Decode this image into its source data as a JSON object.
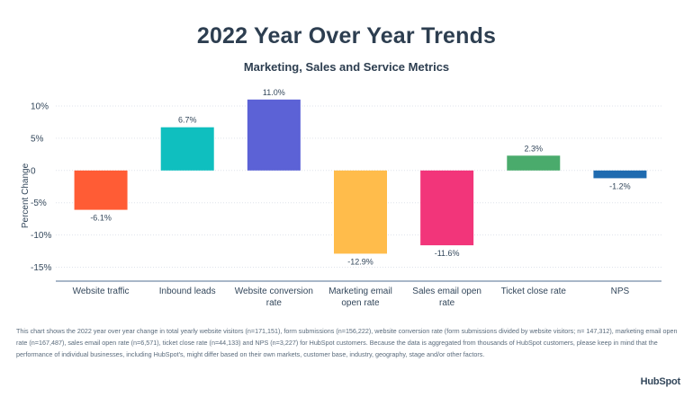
{
  "header": {
    "title": "2022 Year Over Year Trends",
    "subtitle": "Marketing, Sales and Service Metrics"
  },
  "chart_data": {
    "type": "bar",
    "title": "2022 Year Over Year Trends",
    "subtitle": "Marketing, Sales and Service Metrics",
    "xlabel": "",
    "ylabel": "Percent Change",
    "ylim": [
      -16.5,
      11
    ],
    "yticks": [
      10,
      5,
      0,
      -5,
      -10,
      -15
    ],
    "ytick_labels": [
      "10%",
      "5%",
      "0",
      "-5%",
      "-10%",
      "-15%"
    ],
    "grid": true,
    "legend": "none",
    "categories": [
      [
        "Website traffic"
      ],
      [
        "Inbound leads"
      ],
      [
        "Website conversion",
        "rate"
      ],
      [
        "Marketing email",
        "open rate"
      ],
      [
        "Sales email open",
        "rate"
      ],
      [
        "Ticket close rate"
      ],
      [
        "NPS"
      ]
    ],
    "values": [
      -6.1,
      6.7,
      11.0,
      -12.9,
      -11.6,
      2.3,
      -1.2
    ],
    "data_labels": [
      "-6.1%",
      "6.7%",
      "11.0%",
      "-12.9%",
      "-11.6%",
      "2.3%",
      "-1.2%"
    ],
    "colors": [
      "#ff5c35",
      "#0fbfbf",
      "#5c62d6",
      "#ffbc4b",
      "#f2357a",
      "#4aab6c",
      "#1f6bb0"
    ]
  },
  "footnote": "This chart shows the 2022 year over year change in total yearly website visitors (n=171,151), form submissions (n=156,222), website conversion rate (form submissions divided by website visitors; n= 147,312), marketing email open rate (n=167,487), sales email open rate (n=6,571), ticket close rate (n=44,133) and NPS (n=3,227) for HubSpot customers. Because the data is aggregated from thousands of HubSpot customers, please keep in mind that the performance of individual businesses, including HubSpot's, might differ based on their own markets, customer base, industry, geography, stage and/or other factors.",
  "logo": "HubSpot"
}
